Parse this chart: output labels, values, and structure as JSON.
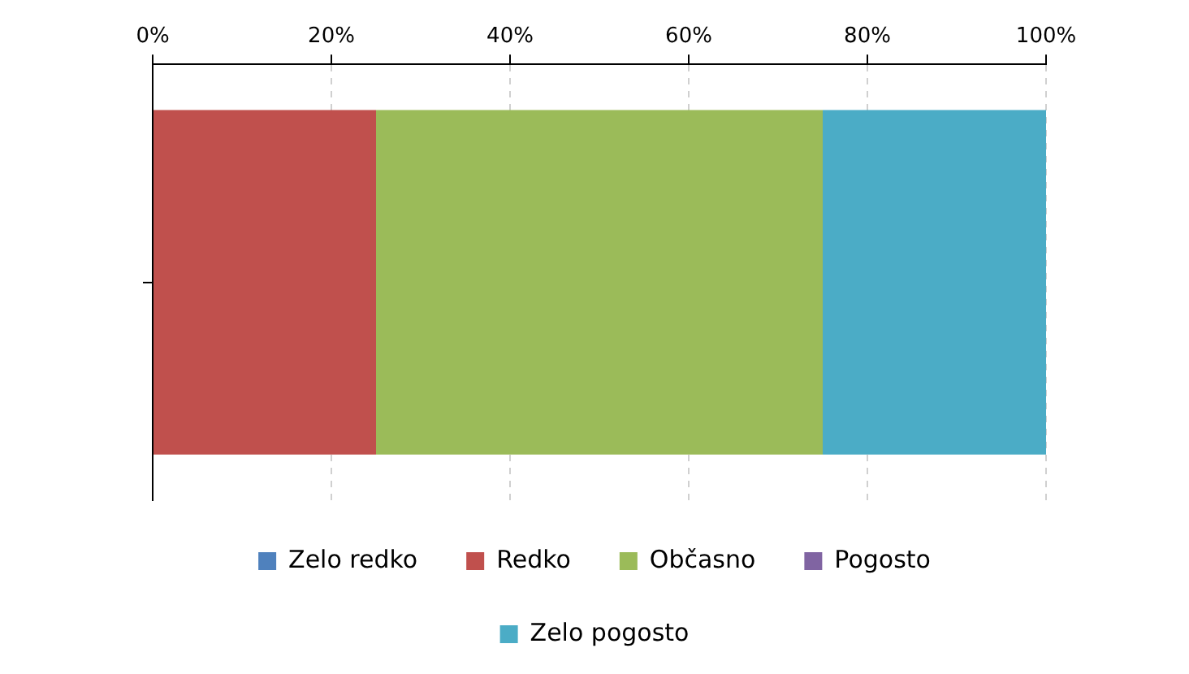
{
  "chart_data": {
    "type": "bar",
    "orientation": "horizontal",
    "stacked": true,
    "categories": [
      null
    ],
    "series": [
      {
        "name": "Zelo redko",
        "color": "#4f81bd",
        "values": [
          0
        ]
      },
      {
        "name": "Redko",
        "color": "#c0504d",
        "values": [
          25
        ]
      },
      {
        "name": "Občasno",
        "color": "#9bbb59",
        "values": [
          50
        ]
      },
      {
        "name": "Pogosto",
        "color": "#8064a2",
        "values": [
          0
        ]
      },
      {
        "name": "Zelo pogosto",
        "color": "#4bacc6",
        "values": [
          25
        ]
      }
    ],
    "xlim": [
      0,
      100
    ],
    "xticks": [
      {
        "value": 0,
        "label": "0%"
      },
      {
        "value": 20,
        "label": "20%"
      },
      {
        "value": 40,
        "label": "40%"
      },
      {
        "value": 60,
        "label": "60%"
      },
      {
        "value": 80,
        "label": "80%"
      },
      {
        "value": 100,
        "label": "100%"
      }
    ],
    "grid": "x",
    "legend": "bottom",
    "tick_labels": "x"
  }
}
